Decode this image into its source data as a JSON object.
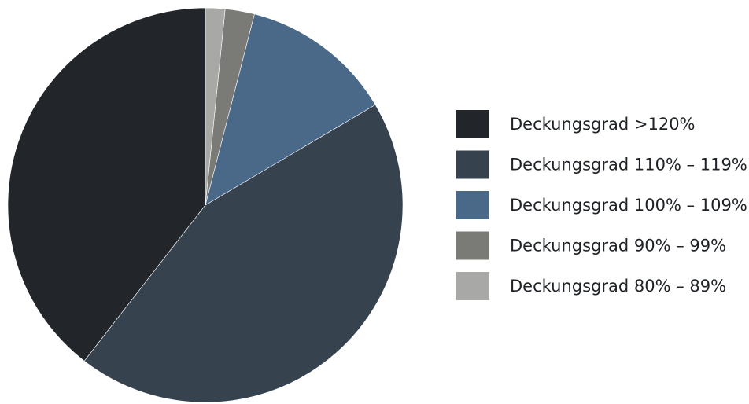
{
  "chart_data": {
    "type": "pie",
    "title": "",
    "legend_position": "right",
    "slices": [
      {
        "label": "Deckungsgrad >120%",
        "value": 39.5,
        "color": "#22262b"
      },
      {
        "label": "Deckungsgrad 110% – 119%",
        "value": 44.0,
        "color": "#37424f"
      },
      {
        "label": "Deckungsgrad 100% – 109%",
        "value": 12.5,
        "color": "#4a6989"
      },
      {
        "label": "Deckungsgrad 90% – 99%",
        "value": 2.4,
        "color": "#7a7b77"
      },
      {
        "label": "Deckungsgrad 80% – 89%",
        "value": 1.6,
        "color": "#a8a8a6"
      }
    ]
  }
}
